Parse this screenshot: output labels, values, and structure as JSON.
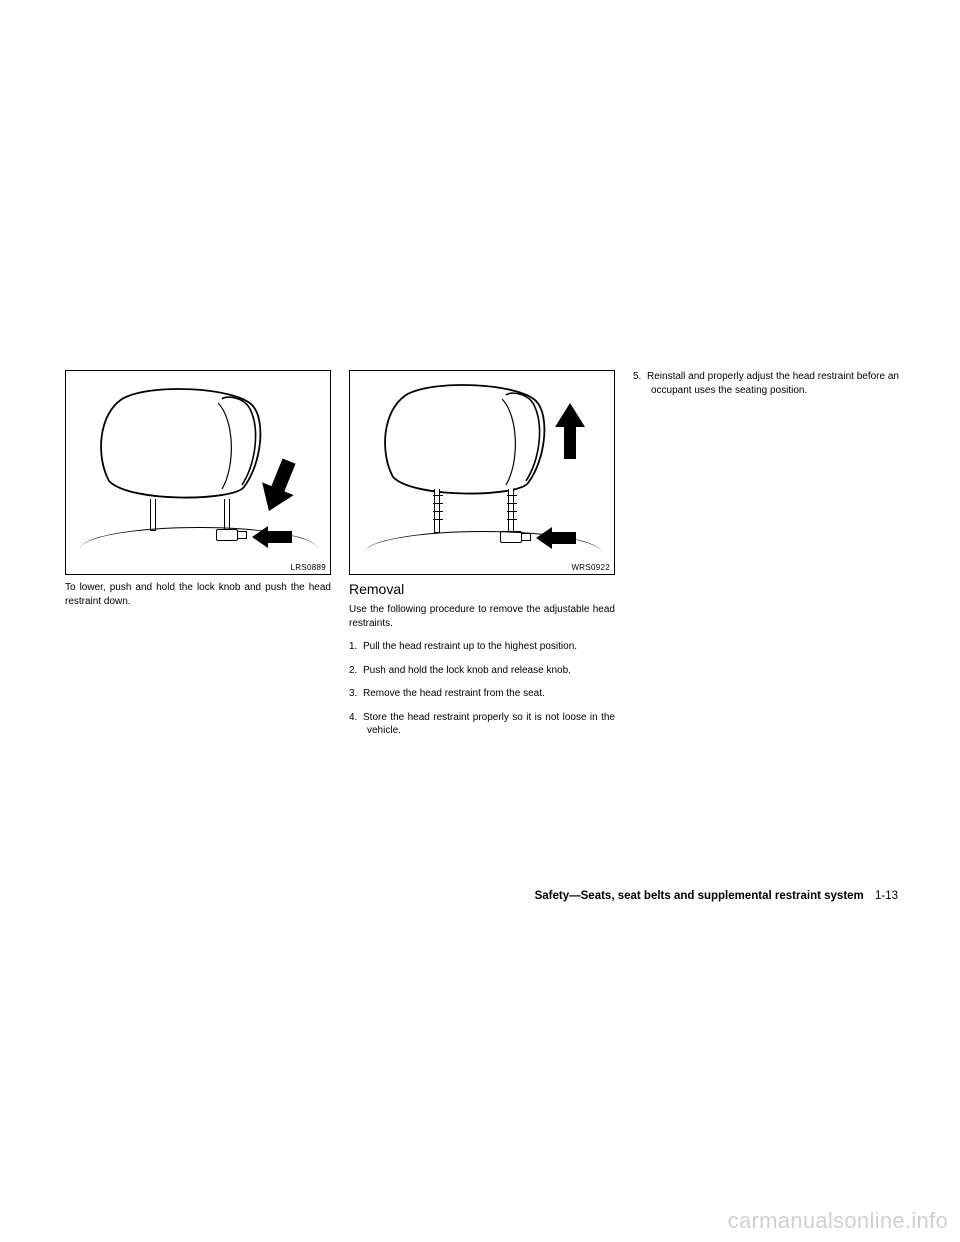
{
  "fig1": {
    "code": "LRS0889",
    "caption": "To lower, push and hold the lock knob and push the head restraint down.",
    "stroke": "#000000",
    "fill": "#ffffff"
  },
  "fig2": {
    "code": "WRS0922",
    "subhead": "Removal",
    "body": "Use the following procedure to remove the adjustable head restraints.",
    "steps": [
      "Pull the head restraint up to the highest position.",
      "Push and hold the lock knob and release knob.",
      "Remove the head restraint from the seat.",
      "Store the head restraint properly so it is not loose in the vehicle."
    ],
    "stroke": "#000000",
    "fill": "#ffffff"
  },
  "col3": {
    "steps": [
      "Reinstall and properly adjust the head restraint before an occupant uses the seating position."
    ],
    "start": 5
  },
  "footer": {
    "section": "Safety—Seats, seat belts and supplemental restraint system",
    "page": "1-13"
  },
  "watermark": "carmanualsonline.info",
  "colors": {
    "text": "#000000",
    "watermark": "#d0d0d0",
    "bg": "#ffffff"
  },
  "typography": {
    "body_pt": 10,
    "subhead_pt": 14,
    "footer_pt": 11.5,
    "figcode_pt": 8,
    "watermark_pt": 22,
    "family": "Arial"
  }
}
